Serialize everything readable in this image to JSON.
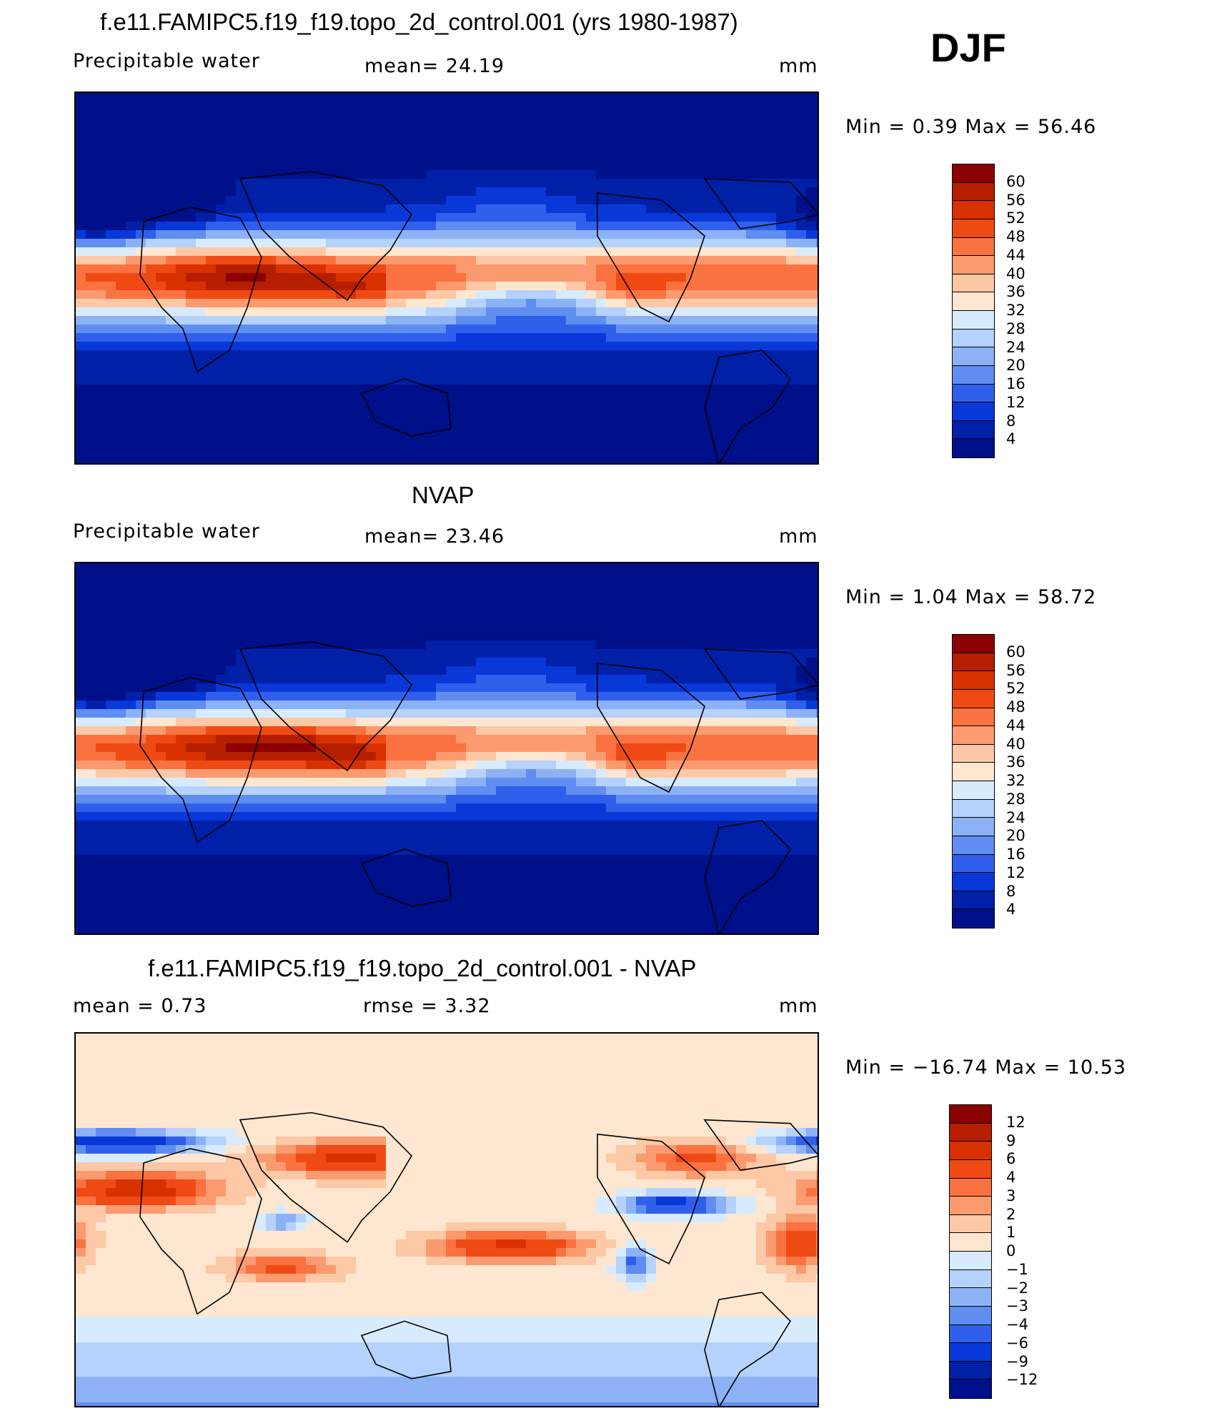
{
  "season": "DJF",
  "panels": [
    {
      "title": "f.e11.FAMIPC5.f19_f19.topo_2d_control.001 (yrs 1980-1987)",
      "left_label": "Precipitable  water",
      "mid_label": "mean=   24.19",
      "unit": "mm",
      "minmax": "Min  =    0.39  Max  =   56.46",
      "field": "model"
    },
    {
      "title": "NVAP",
      "left_label": "Precipitable  water",
      "mid_label": "mean=   23.46",
      "unit": "mm",
      "minmax": "Min  =    1.04  Max  =   58.72",
      "field": "obs"
    },
    {
      "title": "f.e11.FAMIPC5.f19_f19.topo_2d_control.001 - NVAP",
      "left_label": "mean  =     0.73",
      "mid_label": "rmse  =     3.32",
      "unit": "mm",
      "minmax": "Min  = −16.74  Max  =    10.53",
      "field": "diff"
    }
  ],
  "colorbar_abs": {
    "labels": [
      "60",
      "56",
      "52",
      "48",
      "44",
      "40",
      "36",
      "32",
      "28",
      "24",
      "20",
      "16",
      "12",
      "8",
      "4"
    ],
    "colors": [
      "#8b0000",
      "#b51f00",
      "#d93000",
      "#f04a14",
      "#fa7240",
      "#fb9a6e",
      "#fdc8a6",
      "#fee6d0",
      "#d8ebfc",
      "#b4d2fb",
      "#8cb2f5",
      "#5f8df0",
      "#3060eb",
      "#0838d8",
      "#0020a8",
      "#00108a"
    ]
  },
  "colorbar_diff": {
    "labels": [
      "12",
      "9",
      "6",
      "4",
      "3",
      "2",
      "1",
      "0",
      "−1",
      "−2",
      "−3",
      "−4",
      "−6",
      "−9",
      "−12"
    ],
    "colors": [
      "#8b0000",
      "#b51f00",
      "#d93000",
      "#f04a14",
      "#fa7240",
      "#fb9a6e",
      "#fdc8a6",
      "#fee6d0",
      "#d8ebfc",
      "#b4d2fb",
      "#8cb2f5",
      "#5f8df0",
      "#3060eb",
      "#0838d8",
      "#0020a8",
      "#00108a"
    ]
  }
}
